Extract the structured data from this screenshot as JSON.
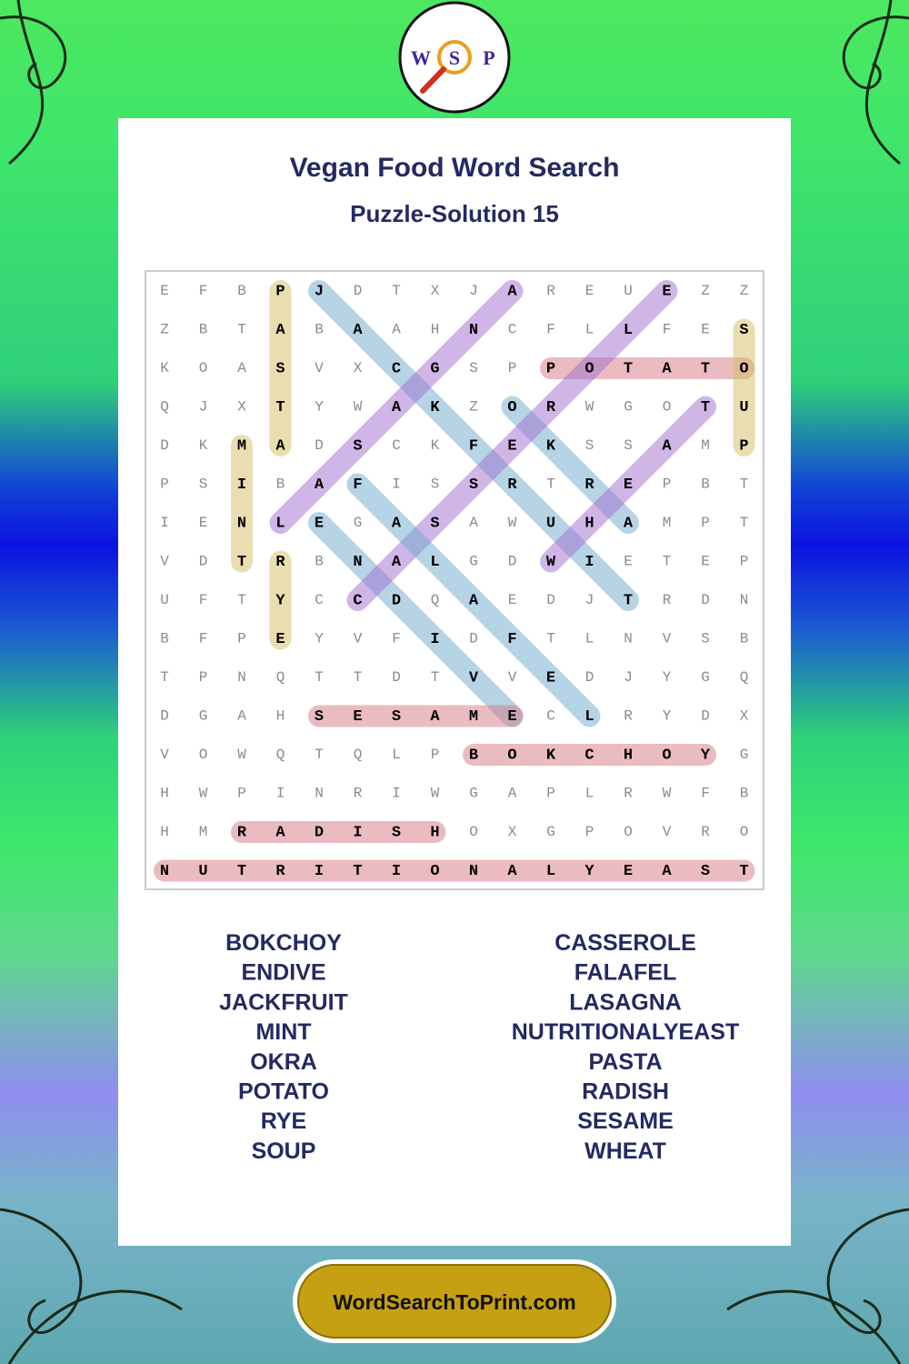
{
  "header": {
    "title": "Vegan Food Word Search",
    "subtitle": "Puzzle-Solution 15",
    "logo": [
      "W",
      "S",
      "P"
    ]
  },
  "grid": {
    "rows": [
      [
        "E",
        "F",
        "B",
        "P",
        "J",
        "D",
        "T",
        "X",
        "J",
        "A",
        "R",
        "E",
        "U",
        "E",
        "Z",
        "Z"
      ],
      [
        "Z",
        "B",
        "T",
        "A",
        "B",
        "A",
        "A",
        "H",
        "N",
        "C",
        "F",
        "L",
        "L",
        "F",
        "E",
        "S"
      ],
      [
        "K",
        "O",
        "A",
        "S",
        "V",
        "X",
        "C",
        "G",
        "S",
        "P",
        "P",
        "O",
        "T",
        "A",
        "T",
        "O"
      ],
      [
        "Q",
        "J",
        "X",
        "T",
        "Y",
        "W",
        "A",
        "K",
        "Z",
        "O",
        "R",
        "W",
        "G",
        "O",
        "T",
        "U"
      ],
      [
        "D",
        "K",
        "M",
        "A",
        "D",
        "S",
        "C",
        "K",
        "F",
        "E",
        "K",
        "S",
        "S",
        "A",
        "M",
        "P"
      ],
      [
        "P",
        "S",
        "I",
        "B",
        "A",
        "F",
        "I",
        "S",
        "S",
        "R",
        "T",
        "R",
        "E",
        "P",
        "B",
        "T"
      ],
      [
        "I",
        "E",
        "N",
        "L",
        "E",
        "G",
        "A",
        "S",
        "A",
        "W",
        "U",
        "H",
        "A",
        "M",
        "P",
        "T"
      ],
      [
        "V",
        "D",
        "T",
        "R",
        "B",
        "N",
        "A",
        "L",
        "G",
        "D",
        "W",
        "I",
        "E",
        "T",
        "E",
        "P"
      ],
      [
        "U",
        "F",
        "T",
        "Y",
        "C",
        "C",
        "D",
        "Q",
        "A",
        "E",
        "D",
        "J",
        "T",
        "R",
        "D",
        "N"
      ],
      [
        "B",
        "F",
        "P",
        "E",
        "Y",
        "V",
        "F",
        "I",
        "D",
        "F",
        "T",
        "L",
        "N",
        "V",
        "S",
        "B"
      ],
      [
        "T",
        "P",
        "N",
        "Q",
        "T",
        "T",
        "D",
        "T",
        "V",
        "V",
        "E",
        "D",
        "J",
        "Y",
        "G",
        "Q"
      ],
      [
        "D",
        "G",
        "A",
        "H",
        "S",
        "E",
        "S",
        "A",
        "M",
        "E",
        "C",
        "L",
        "R",
        "Y",
        "D",
        "X"
      ],
      [
        "V",
        "O",
        "W",
        "Q",
        "T",
        "Q",
        "L",
        "P",
        "B",
        "O",
        "K",
        "C",
        "H",
        "O",
        "Y",
        "G"
      ],
      [
        "H",
        "W",
        "P",
        "I",
        "N",
        "R",
        "I",
        "W",
        "G",
        "A",
        "P",
        "L",
        "R",
        "W",
        "F",
        "B"
      ],
      [
        "H",
        "M",
        "R",
        "A",
        "D",
        "I",
        "S",
        "H",
        "O",
        "X",
        "G",
        "P",
        "O",
        "V",
        "R",
        "O"
      ],
      [
        "N",
        "U",
        "T",
        "R",
        "I",
        "T",
        "I",
        "O",
        "N",
        "A",
        "L",
        "Y",
        "E",
        "A",
        "S",
        "T"
      ]
    ]
  },
  "word_list": {
    "left": [
      "BOKCHOY",
      "ENDIVE",
      "JACKFRUIT",
      "MINT",
      "OKRA",
      "POTATO",
      "RYE",
      "SOUP"
    ],
    "right": [
      "CASSEROLE",
      "FALAFEL",
      "LASAGNA",
      "NUTRITIONALYEAST",
      "PASTA",
      "RADISH",
      "SESAME",
      "WHEAT"
    ]
  },
  "footer": {
    "site": "WordSearchToPrint.com"
  }
}
